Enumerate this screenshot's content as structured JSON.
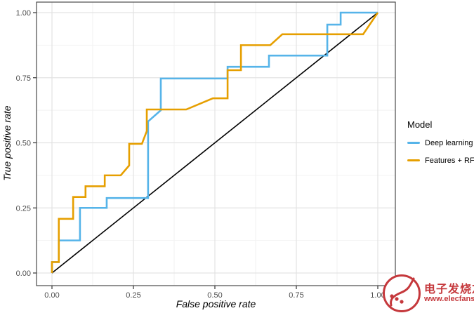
{
  "chart_data": {
    "type": "line",
    "subtype": "roc-curve",
    "title": "",
    "xlabel": "False positive rate",
    "ylabel": "True positive rate",
    "xlim": [
      0,
      1
    ],
    "ylim": [
      0,
      1
    ],
    "x_ticks": [
      0,
      0.25,
      0.5,
      0.75,
      1.0
    ],
    "x_tick_labels": [
      "0.00",
      "0.25",
      "0.50",
      "0.75",
      "1.00"
    ],
    "y_ticks": [
      0,
      0.25,
      0.5,
      0.75,
      1.0
    ],
    "y_tick_labels": [
      "0.00",
      "0.25",
      "0.50",
      "0.75",
      "1.00"
    ],
    "x_minor_ticks": [
      0.125,
      0.375,
      0.625,
      0.875
    ],
    "y_minor_ticks": [
      0.125,
      0.375,
      0.625,
      0.875
    ],
    "grid": "major+minor",
    "legend_position": "right",
    "legend_title": "Model",
    "colors": {
      "grid_major": "#e3e3e3",
      "grid_minor": "#f2f2f2",
      "panel_border": "#4a4a4a",
      "axis_text": "#4d4d4d",
      "tick_mark": "#333333",
      "reference_line": "#000000"
    },
    "reference_line": {
      "points": [
        [
          0,
          0
        ],
        [
          1,
          1
        ]
      ]
    },
    "series": [
      {
        "name": "Deep learning",
        "color": "#56B4E9",
        "points": [
          [
            0,
            0
          ],
          [
            0,
            0.042
          ],
          [
            0.021,
            0.042
          ],
          [
            0.021,
            0.125
          ],
          [
            0.086,
            0.125
          ],
          [
            0.086,
            0.25
          ],
          [
            0.168,
            0.25
          ],
          [
            0.168,
            0.288
          ],
          [
            0.295,
            0.288
          ],
          [
            0.295,
            0.582
          ],
          [
            0.334,
            0.625
          ],
          [
            0.334,
            0.747
          ],
          [
            0.539,
            0.747
          ],
          [
            0.539,
            0.792
          ],
          [
            0.666,
            0.792
          ],
          [
            0.666,
            0.835
          ],
          [
            0.845,
            0.835
          ],
          [
            0.845,
            0.954
          ],
          [
            0.886,
            0.954
          ],
          [
            0.886,
            1
          ],
          [
            1,
            1
          ]
        ]
      },
      {
        "name": "Features + RF",
        "color": "#E69F00",
        "points": [
          [
            0,
            0
          ],
          [
            0,
            0.042
          ],
          [
            0.021,
            0.042
          ],
          [
            0.021,
            0.208
          ],
          [
            0.065,
            0.208
          ],
          [
            0.065,
            0.292
          ],
          [
            0.103,
            0.292
          ],
          [
            0.103,
            0.333
          ],
          [
            0.162,
            0.333
          ],
          [
            0.162,
            0.375
          ],
          [
            0.211,
            0.375
          ],
          [
            0.237,
            0.413
          ],
          [
            0.237,
            0.496
          ],
          [
            0.276,
            0.496
          ],
          [
            0.291,
            0.545
          ],
          [
            0.291,
            0.628
          ],
          [
            0.412,
            0.628
          ],
          [
            0.494,
            0.671
          ],
          [
            0.539,
            0.671
          ],
          [
            0.539,
            0.779
          ],
          [
            0.58,
            0.779
          ],
          [
            0.58,
            0.875
          ],
          [
            0.67,
            0.875
          ],
          [
            0.707,
            0.917
          ],
          [
            0.955,
            0.917
          ],
          [
            1,
            1
          ]
        ]
      }
    ]
  },
  "watermark": {
    "brand": "电子发烧友",
    "url": "www.elecfans.com",
    "color": "#C5383C"
  }
}
